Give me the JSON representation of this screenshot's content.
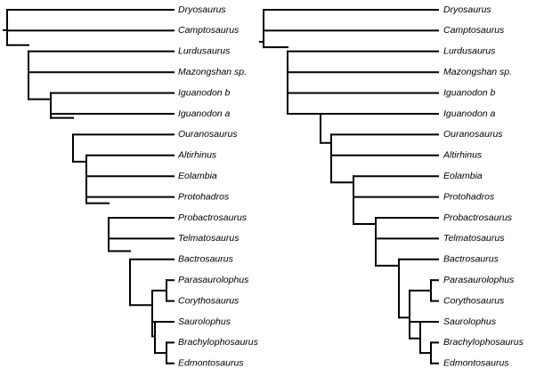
{
  "trees": [
    {
      "id": "left",
      "taxa": [
        "Dryosaurus",
        "Camptosaurus",
        "Lurdusaurus",
        "Mazongshan sp.",
        "Iguanodon b",
        "Iguanodon a",
        "Ouranosaurus",
        "Altirhinus",
        "Eolambia",
        "Protohadros",
        "Probactrosaurus",
        "Telmatosaurus",
        "Bactrosaurus",
        "Parasaurolophus",
        "Corythosaurus",
        "Saurolophus",
        "Brachylophosaurus",
        "Edmontosaurus"
      ]
    },
    {
      "id": "right",
      "taxa": [
        "Dryosaurus",
        "Camptosaurus",
        "Lurdusaurus",
        "Mazongshan sp.",
        "Iguanodon b",
        "Iguanodon a",
        "Ouranosaurus",
        "Altirhinus",
        "Eolambia",
        "Protohadros",
        "Probactrosaurus",
        "Telmatosaurus",
        "Bactrosaurus",
        "Parasaurolophus",
        "Corythosaurus",
        "Saurolophus",
        "Brachylophosaurus",
        "Edmontosaurus"
      ]
    }
  ]
}
